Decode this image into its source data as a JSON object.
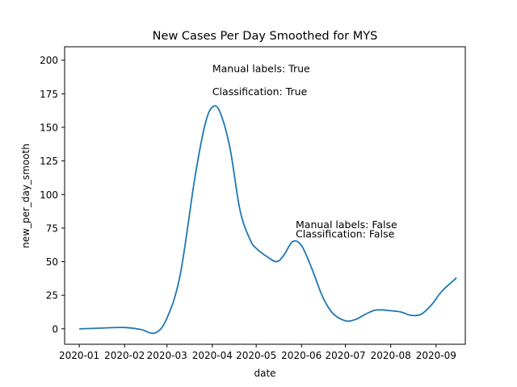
{
  "chart_data": {
    "type": "line",
    "title": "New Cases Per Day Smoothed for MYS",
    "xlabel": "date",
    "ylabel": "new_per_day_smooth",
    "ylim": [
      -11.5,
      210
    ],
    "xlim": [
      "2019-12-22",
      "2020-09-21"
    ],
    "x_ticks": [
      "2020-01",
      "2020-02",
      "2020-03",
      "2020-04",
      "2020-05",
      "2020-06",
      "2020-07",
      "2020-08",
      "2020-09"
    ],
    "y_ticks": [
      0,
      25,
      50,
      75,
      100,
      125,
      150,
      175,
      200
    ],
    "grid": false,
    "series_color": "#1f77b4",
    "series": [
      {
        "x": [
          "2020-01-01",
          "2020-01-15",
          "2020-02-01",
          "2020-02-12",
          "2020-02-22",
          "2020-03-01",
          "2020-03-10",
          "2020-03-20",
          "2020-03-27",
          "2020-04-01",
          "2020-04-06",
          "2020-04-13",
          "2020-04-20",
          "2020-04-27",
          "2020-05-01",
          "2020-05-08",
          "2020-05-15",
          "2020-05-20",
          "2020-05-26",
          "2020-06-01",
          "2020-06-08",
          "2020-06-15",
          "2020-06-22",
          "2020-07-01",
          "2020-07-08",
          "2020-07-15",
          "2020-07-22",
          "2020-08-01",
          "2020-08-08",
          "2020-08-15",
          "2020-08-22",
          "2020-08-29",
          "2020-09-05",
          "2020-09-15"
        ],
        "y": [
          0,
          0.5,
          1,
          -0.5,
          -3,
          8,
          40,
          112,
          152,
          165,
          162,
          135,
          88,
          66,
          60,
          54,
          50,
          55,
          65,
          62,
          45,
          25,
          12,
          6,
          7,
          11,
          14,
          13.5,
          12.5,
          10,
          11,
          18,
          28,
          38
        ]
      }
    ],
    "annotations": [
      {
        "text": "Manual labels: True",
        "x": "2020-04-01",
        "y": 191
      },
      {
        "text": "Classification: True",
        "x": "2020-04-01",
        "y": 174
      },
      {
        "text": "Manual labels: False",
        "x": "2020-05-28",
        "y": 75
      },
      {
        "text": "Classification: False",
        "x": "2020-05-28",
        "y": 68
      }
    ]
  }
}
